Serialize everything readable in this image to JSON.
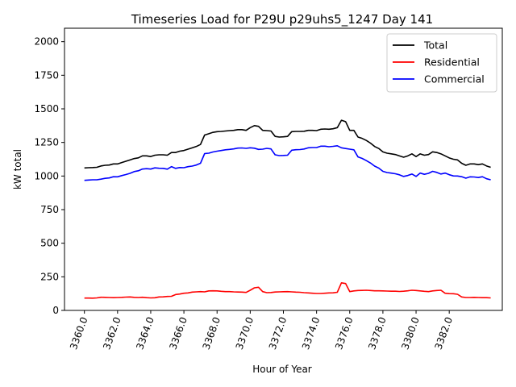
{
  "chart_data": {
    "type": "line",
    "title": "Timeseries Load for P29U p29uhs5_1247  Day 141",
    "xlabel": "Hour of Year",
    "ylabel": "kW total",
    "xlim": [
      3358.8,
      3385.2
    ],
    "ylim": [
      0,
      2100
    ],
    "x_ticks": [
      3360,
      3362,
      3364,
      3366,
      3368,
      3370,
      3372,
      3374,
      3376,
      3378,
      3380,
      3382
    ],
    "x_tick_labels": [
      "3360.0",
      "3362.0",
      "3364.0",
      "3366.0",
      "3368.0",
      "3370.0",
      "3372.0",
      "3374.0",
      "3376.0",
      "3378.0",
      "3380.0",
      "3382.0"
    ],
    "y_ticks": [
      0,
      250,
      500,
      750,
      1000,
      1250,
      1500,
      1750,
      2000
    ],
    "y_tick_labels": [
      "0",
      "250",
      "500",
      "750",
      "1000",
      "1250",
      "1500",
      "1750",
      "2000"
    ],
    "legend_position": "top-right",
    "x_start": 3360,
    "x_step": 0.25,
    "series": [
      {
        "name": "Total",
        "color": "#000000",
        "values": [
          1060,
          1062,
          1063,
          1065,
          1075,
          1080,
          1082,
          1090,
          1090,
          1100,
          1110,
          1120,
          1130,
          1135,
          1150,
          1150,
          1145,
          1155,
          1158,
          1158,
          1155,
          1175,
          1175,
          1185,
          1190,
          1200,
          1210,
          1220,
          1235,
          1305,
          1315,
          1325,
          1330,
          1332,
          1335,
          1338,
          1340,
          1345,
          1345,
          1340,
          1360,
          1375,
          1370,
          1340,
          1338,
          1335,
          1295,
          1290,
          1292,
          1295,
          1330,
          1332,
          1332,
          1333,
          1340,
          1340,
          1338,
          1348,
          1350,
          1348,
          1352,
          1360,
          1415,
          1405,
          1340,
          1340,
          1290,
          1280,
          1265,
          1245,
          1220,
          1205,
          1180,
          1170,
          1165,
          1160,
          1150,
          1140,
          1150,
          1165,
          1145,
          1165,
          1155,
          1160,
          1180,
          1175,
          1165,
          1150,
          1135,
          1125,
          1120,
          1095,
          1080,
          1090,
          1090,
          1085,
          1090,
          1075,
          1065
        ]
      },
      {
        "name": "Residential",
        "color": "#ff0000",
        "values": [
          92,
          92,
          91,
          93,
          98,
          97,
          96,
          95,
          96,
          97,
          99,
          100,
          97,
          96,
          98,
          95,
          93,
          94,
          100,
          101,
          104,
          105,
          118,
          122,
          128,
          130,
          136,
          138,
          140,
          138,
          145,
          146,
          145,
          142,
          140,
          140,
          138,
          137,
          136,
          134,
          150,
          168,
          172,
          140,
          132,
          133,
          137,
          138,
          139,
          140,
          138,
          136,
          135,
          132,
          130,
          128,
          126,
          126,
          128,
          130,
          131,
          135,
          205,
          200,
          140,
          145,
          148,
          149,
          150,
          148,
          146,
          146,
          145,
          144,
          143,
          143,
          141,
          143,
          146,
          150,
          148,
          145,
          142,
          140,
          145,
          148,
          150,
          128,
          125,
          124,
          120,
          100,
          96,
          96,
          97,
          96,
          95,
          95,
          93
        ]
      },
      {
        "name": "Commercial",
        "color": "#0000ff",
        "values": [
          968,
          970,
          972,
          972,
          977,
          983,
          986,
          995,
          994,
          1003,
          1011,
          1020,
          1033,
          1039,
          1052,
          1055,
          1052,
          1061,
          1058,
          1057,
          1051,
          1070,
          1057,
          1063,
          1062,
          1070,
          1074,
          1082,
          1095,
          1167,
          1170,
          1179,
          1185,
          1190,
          1195,
          1198,
          1202,
          1208,
          1209,
          1206,
          1210,
          1207,
          1198,
          1200,
          1206,
          1202,
          1158,
          1152,
          1153,
          1155,
          1192,
          1196,
          1197,
          1201,
          1210,
          1212,
          1212,
          1222,
          1222,
          1218,
          1221,
          1225,
          1210,
          1205,
          1200,
          1195,
          1142,
          1131,
          1115,
          1097,
          1074,
          1059,
          1035,
          1026,
          1022,
          1017,
          1009,
          997,
          1004,
          1015,
          997,
          1022,
          1013,
          1020,
          1035,
          1027,
          1015,
          1022,
          1010,
          1001,
          1000,
          995,
          984,
          994,
          993,
          989,
          995,
          980,
          972
        ]
      }
    ]
  }
}
